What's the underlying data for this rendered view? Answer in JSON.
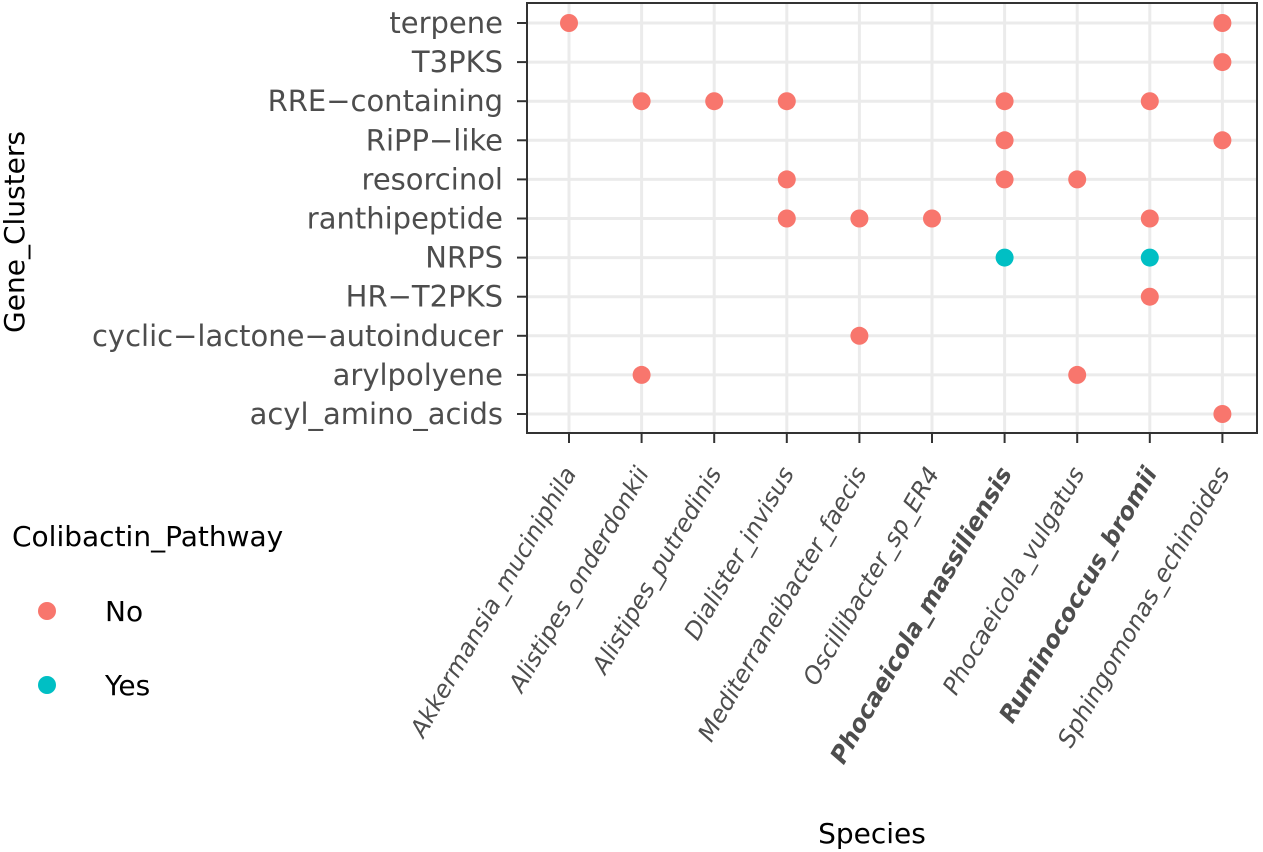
{
  "chart_data": {
    "type": "scatter",
    "title": "",
    "xlabel": "Species",
    "ylabel": "Gene_Clusters",
    "x_categories": [
      "Akkermansia_muciniphila",
      "Alistipes_onderdonkii",
      "Alistipes_putredinis",
      "Dialister_invisus",
      "Mediterraneibacter_faecis",
      "Oscillibacter_sp_ER4",
      "Phocaeicola_massiliensis",
      "Phocaeicola_vulgatus",
      "Ruminococcus_bromii",
      "Sphingomonas_echinoides"
    ],
    "x_bold": [
      "Phocaeicola_massiliensis",
      "Ruminococcus_bromii"
    ],
    "y_categories": [
      "acyl_amino_acids",
      "arylpolyene",
      "cyclic−lactone−autoinducer",
      "HR−T2PKS",
      "NRPS",
      "ranthipeptide",
      "resorcinol",
      "RiPP−like",
      "RRE−containing",
      "T3PKS",
      "terpene"
    ],
    "legend": {
      "title": "Colibactin_Pathway",
      "placement": "left",
      "entries": [
        {
          "label": "No",
          "color": "#F8766D"
        },
        {
          "label": "Yes",
          "color": "#00BFC4"
        }
      ]
    },
    "grid": true,
    "points": [
      {
        "x": "Akkermansia_muciniphila",
        "y": "terpene",
        "group": "No"
      },
      {
        "x": "Sphingomonas_echinoides",
        "y": "terpene",
        "group": "No"
      },
      {
        "x": "Sphingomonas_echinoides",
        "y": "T3PKS",
        "group": "No"
      },
      {
        "x": "Alistipes_onderdonkii",
        "y": "RRE−containing",
        "group": "No"
      },
      {
        "x": "Alistipes_putredinis",
        "y": "RRE−containing",
        "group": "No"
      },
      {
        "x": "Dialister_invisus",
        "y": "RRE−containing",
        "group": "No"
      },
      {
        "x": "Phocaeicola_massiliensis",
        "y": "RRE−containing",
        "group": "No"
      },
      {
        "x": "Ruminococcus_bromii",
        "y": "RRE−containing",
        "group": "No"
      },
      {
        "x": "Phocaeicola_massiliensis",
        "y": "RiPP−like",
        "group": "No"
      },
      {
        "x": "Sphingomonas_echinoides",
        "y": "RiPP−like",
        "group": "No"
      },
      {
        "x": "Dialister_invisus",
        "y": "resorcinol",
        "group": "No"
      },
      {
        "x": "Phocaeicola_massiliensis",
        "y": "resorcinol",
        "group": "No"
      },
      {
        "x": "Phocaeicola_vulgatus",
        "y": "resorcinol",
        "group": "No"
      },
      {
        "x": "Dialister_invisus",
        "y": "ranthipeptide",
        "group": "No"
      },
      {
        "x": "Mediterraneibacter_faecis",
        "y": "ranthipeptide",
        "group": "No"
      },
      {
        "x": "Oscillibacter_sp_ER4",
        "y": "ranthipeptide",
        "group": "No"
      },
      {
        "x": "Ruminococcus_bromii",
        "y": "ranthipeptide",
        "group": "No"
      },
      {
        "x": "Phocaeicola_massiliensis",
        "y": "NRPS",
        "group": "Yes"
      },
      {
        "x": "Ruminococcus_bromii",
        "y": "NRPS",
        "group": "Yes"
      },
      {
        "x": "Ruminococcus_bromii",
        "y": "HR−T2PKS",
        "group": "No"
      },
      {
        "x": "Mediterraneibacter_faecis",
        "y": "cyclic−lactone−autoinducer",
        "group": "No"
      },
      {
        "x": "Alistipes_onderdonkii",
        "y": "arylpolyene",
        "group": "No"
      },
      {
        "x": "Phocaeicola_vulgatus",
        "y": "arylpolyene",
        "group": "No"
      },
      {
        "x": "Sphingomonas_echinoides",
        "y": "acyl_amino_acids",
        "group": "No"
      }
    ]
  }
}
